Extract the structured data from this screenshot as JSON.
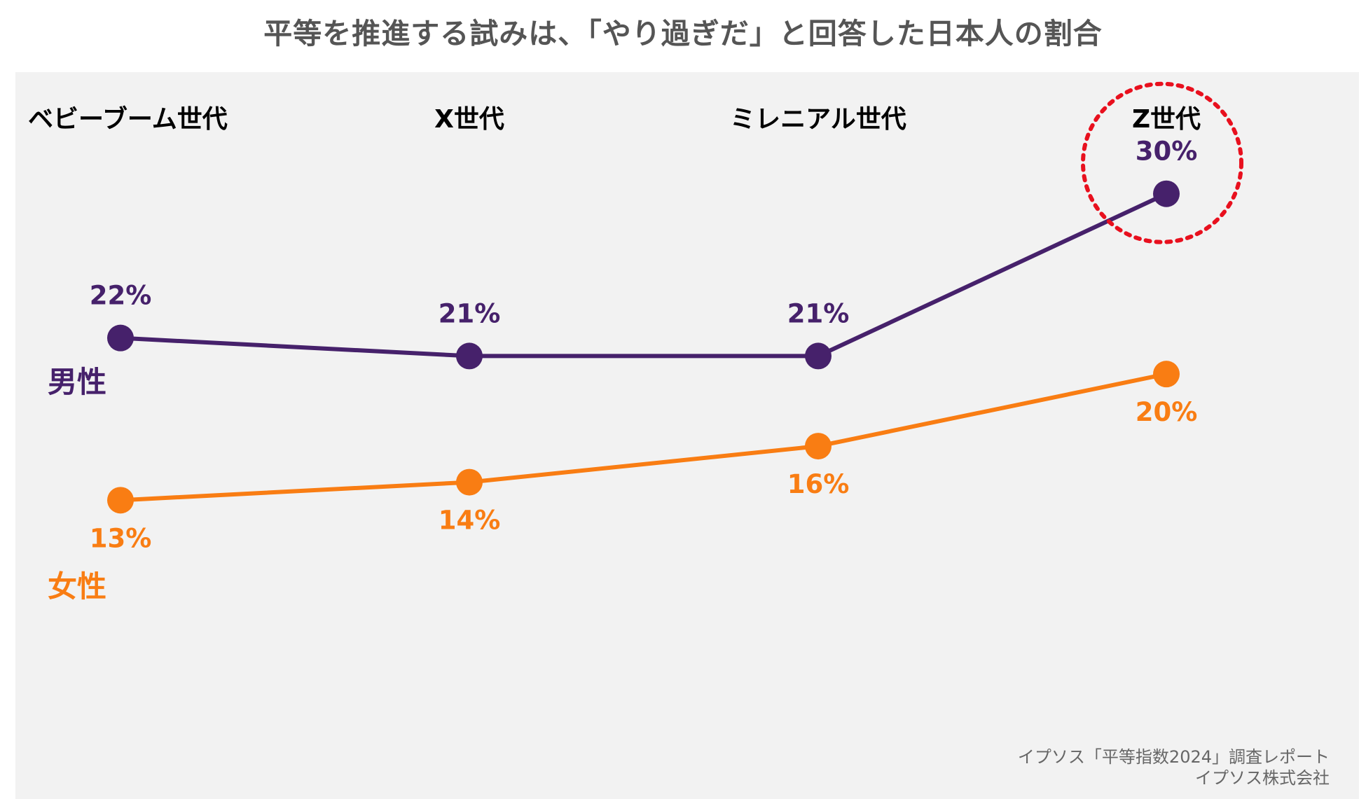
{
  "chart_data": {
    "type": "line",
    "title": "平等を推進する試みは、「やり過ぎだ」と回答した日本人の割合",
    "categories": [
      "ベビーブーム世代",
      "X世代",
      "ミレニアル世代",
      "Z世代"
    ],
    "series": [
      {
        "name": "男性",
        "values": [
          22,
          21,
          21,
          30
        ],
        "labels": [
          "22%",
          "21%",
          "21%",
          "30%"
        ],
        "color": "#46216b",
        "label_position": "above"
      },
      {
        "name": "女性",
        "values": [
          13,
          14,
          16,
          20
        ],
        "labels": [
          "13%",
          "14%",
          "16%",
          "20%"
        ],
        "color": "#f97d13",
        "label_position": "below"
      }
    ],
    "unit": "%",
    "ylim": [
      0,
      35
    ],
    "xlabel": "",
    "ylabel": "",
    "grid": false,
    "legend": "inline-left",
    "highlight": {
      "series": "男性",
      "category": "Z世代",
      "style": "dotted-circle",
      "color": "#e8101e"
    },
    "background": "#f2f2f2"
  },
  "source": {
    "line1": "イプソス「平等指数2024」調査レポート",
    "line2": "イプソス株式会社"
  }
}
